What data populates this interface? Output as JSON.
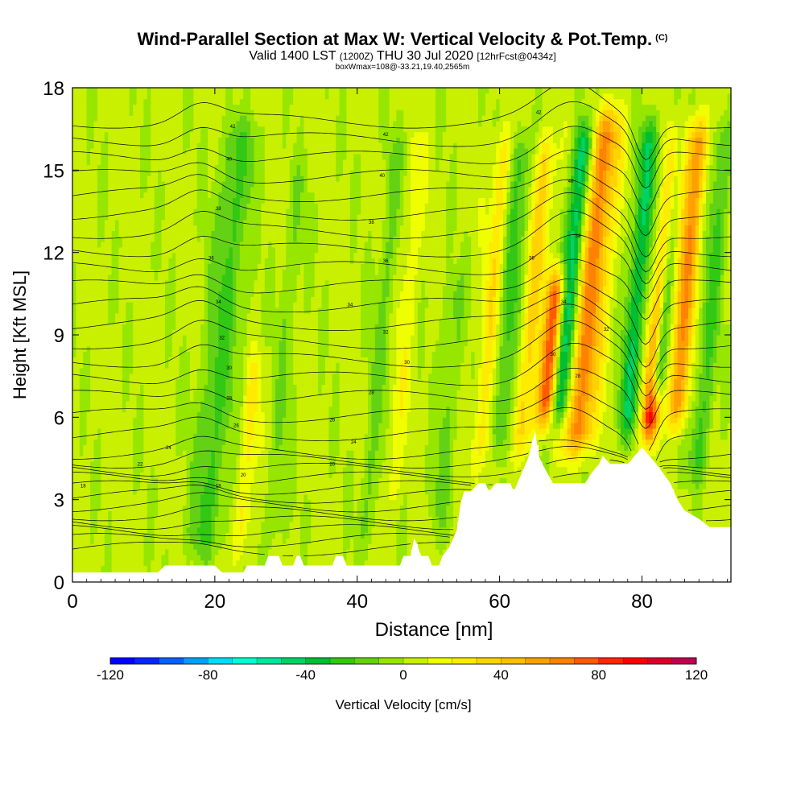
{
  "header": {
    "title": "Wind-Parallel Section at Max W: Vertical Velocity & Pot.Temp.",
    "corner_mark": "(C)",
    "valid_prefix": "Valid 1400 LST",
    "valid_utc": "(1200Z)",
    "valid_date": "THU 30 Jul 2020",
    "forecast": "[12hrFcst@0434z]",
    "box_info": "boxWmax=108@-33.21,19.40,2565m"
  },
  "chart_data": {
    "type": "contour-section",
    "title": "Wind-Parallel Section at Max W: Vertical Velocity & Pot.Temp.",
    "xlabel": "Distance [nm]",
    "ylabel": "Height [Kft MSL]",
    "xlim": [
      0,
      92.5
    ],
    "ylim": [
      0,
      18
    ],
    "xticks": [
      0,
      20,
      40,
      60,
      80
    ],
    "yticks": [
      0,
      3,
      6,
      9,
      12,
      15,
      18
    ],
    "colorbar": {
      "label": "Vertical Velocity [cm/s]",
      "range": [
        -120,
        120
      ],
      "step": 10,
      "tick_values": [
        -120,
        -80,
        -40,
        0,
        40,
        80,
        120
      ],
      "tick_labels": [
        "-120",
        "-80",
        "-40",
        "0",
        "40",
        "80",
        "120"
      ],
      "colors": [
        "#0000ff",
        "#0028ff",
        "#0064ff",
        "#00a0ff",
        "#00dcff",
        "#00ffd2",
        "#00e6a0",
        "#00d264",
        "#00be32",
        "#32c814",
        "#64d214",
        "#96e600",
        "#c8f000",
        "#f0ff00",
        "#ffeb00",
        "#ffd200",
        "#ffbe00",
        "#ffa000",
        "#ff8200",
        "#ff5a00",
        "#ff2800",
        "#ff0000",
        "#dc0028",
        "#be0050"
      ]
    },
    "terrain": [
      {
        "x": 0,
        "h": 0.35
      },
      {
        "x": 12,
        "h": 0.35
      },
      {
        "x": 13,
        "h": 0.6
      },
      {
        "x": 20,
        "h": 0.6
      },
      {
        "x": 21,
        "h": 0.35
      },
      {
        "x": 24,
        "h": 0.35
      },
      {
        "x": 24.5,
        "h": 0.6
      },
      {
        "x": 27,
        "h": 0.6
      },
      {
        "x": 27.5,
        "h": 0.95
      },
      {
        "x": 29,
        "h": 0.95
      },
      {
        "x": 29.5,
        "h": 0.6
      },
      {
        "x": 31,
        "h": 0.6
      },
      {
        "x": 31.5,
        "h": 0.95
      },
      {
        "x": 32,
        "h": 0.95
      },
      {
        "x": 32.5,
        "h": 0.6
      },
      {
        "x": 36.5,
        "h": 0.6
      },
      {
        "x": 37,
        "h": 0.95
      },
      {
        "x": 38,
        "h": 0.95
      },
      {
        "x": 38.5,
        "h": 0.6
      },
      {
        "x": 46,
        "h": 0.6
      },
      {
        "x": 46.5,
        "h": 0.95
      },
      {
        "x": 47.5,
        "h": 0.95
      },
      {
        "x": 48,
        "h": 1.6
      },
      {
        "x": 48.5,
        "h": 1.3
      },
      {
        "x": 49,
        "h": 0.95
      },
      {
        "x": 50,
        "h": 0.95
      },
      {
        "x": 50.5,
        "h": 0.6
      },
      {
        "x": 51.5,
        "h": 0.6
      },
      {
        "x": 52,
        "h": 0.95
      },
      {
        "x": 53,
        "h": 1.3
      },
      {
        "x": 54,
        "h": 1.9
      },
      {
        "x": 54.5,
        "h": 2.8
      },
      {
        "x": 55,
        "h": 3.3
      },
      {
        "x": 56,
        "h": 3.3
      },
      {
        "x": 57,
        "h": 3.6
      },
      {
        "x": 58,
        "h": 3.6
      },
      {
        "x": 58.5,
        "h": 3.3
      },
      {
        "x": 59.5,
        "h": 3.6
      },
      {
        "x": 61.5,
        "h": 3.6
      },
      {
        "x": 62,
        "h": 3.3
      },
      {
        "x": 63,
        "h": 3.9
      },
      {
        "x": 64,
        "h": 4.5
      },
      {
        "x": 65,
        "h": 5.5
      },
      {
        "x": 65.5,
        "h": 4.6
      },
      {
        "x": 66,
        "h": 4.3
      },
      {
        "x": 67.5,
        "h": 3.6
      },
      {
        "x": 72,
        "h": 3.6
      },
      {
        "x": 73,
        "h": 4.0
      },
      {
        "x": 74,
        "h": 4.3
      },
      {
        "x": 74.5,
        "h": 4.6
      },
      {
        "x": 75.5,
        "h": 4.3
      },
      {
        "x": 78,
        "h": 4.3
      },
      {
        "x": 79,
        "h": 4.6
      },
      {
        "x": 80,
        "h": 4.9
      },
      {
        "x": 81,
        "h": 4.6
      },
      {
        "x": 82,
        "h": 4.3
      },
      {
        "x": 84,
        "h": 3.6
      },
      {
        "x": 85,
        "h": 3.0
      },
      {
        "x": 86,
        "h": 2.6
      },
      {
        "x": 88,
        "h": 2.3
      },
      {
        "x": 89.5,
        "h": 2.0
      },
      {
        "x": 92.5,
        "h": 2.0
      }
    ],
    "updrafts": [
      {
        "x": 18,
        "w": 2.5,
        "h0": 0.3,
        "h1": 17.5,
        "v": -25,
        "tilt": 0.35
      },
      {
        "x": 23.5,
        "w": 1.2,
        "h0": 0.5,
        "h1": 9,
        "v": 20,
        "tilt": 0.3
      },
      {
        "x": 28,
        "w": 1.5,
        "h0": 0.5,
        "h1": 16,
        "v": -12,
        "tilt": 0.25
      },
      {
        "x": 41,
        "w": 1.5,
        "h0": 0.6,
        "h1": 17,
        "v": -15,
        "tilt": 0.3
      },
      {
        "x": 44.5,
        "w": 1.2,
        "h0": 2,
        "h1": 17,
        "v": 15,
        "tilt": 0.3
      },
      {
        "x": 51,
        "w": 1.5,
        "h0": 1,
        "h1": 12,
        "v": -15,
        "tilt": 0.3
      },
      {
        "x": 57.5,
        "w": 1.5,
        "h0": 3.5,
        "h1": 17,
        "v": 25,
        "tilt": 0.25
      },
      {
        "x": 59.5,
        "w": 1.5,
        "h0": 4,
        "h1": 17,
        "v": -30,
        "tilt": 0.3
      },
      {
        "x": 63,
        "w": 1.5,
        "h0": 4,
        "h1": 17,
        "v": 30,
        "tilt": 0.3
      },
      {
        "x": 66,
        "w": 1.2,
        "h0": 5,
        "h1": 12,
        "v": 75,
        "tilt": 0.35
      },
      {
        "x": 68,
        "w": 1.3,
        "h0": 5,
        "h1": 17.5,
        "v": -60,
        "tilt": 0.35
      },
      {
        "x": 70.5,
        "w": 2.2,
        "h0": 4,
        "h1": 17.8,
        "v": 60,
        "tilt": 0.35
      },
      {
        "x": 77.5,
        "w": 1.5,
        "h0": 4.5,
        "h1": 17.5,
        "v": -40,
        "tilt": 0.3
      },
      {
        "x": 80.5,
        "w": 1.2,
        "h0": 4.5,
        "h1": 17.5,
        "v": 95,
        "tilt": 0.4
      },
      {
        "x": 81.7,
        "w": 1.0,
        "h0": 6,
        "h1": 17.5,
        "v": -95,
        "tilt": 0.35
      },
      {
        "x": 84.5,
        "w": 1.5,
        "h0": 5,
        "h1": 17.5,
        "v": 55,
        "tilt": 0.3
      },
      {
        "x": 87.5,
        "w": 1.5,
        "h0": 3,
        "h1": 17.5,
        "v": -25,
        "tilt": 0.3
      }
    ],
    "isentrope_labels": [
      {
        "x": 22.5,
        "y": 16.6,
        "text": "42"
      },
      {
        "x": 22,
        "y": 15.4,
        "text": "40"
      },
      {
        "x": 20.5,
        "y": 13.6,
        "text": "38"
      },
      {
        "x": 19.5,
        "y": 11.8,
        "text": "36"
      },
      {
        "x": 20.5,
        "y": 10.2,
        "text": "34"
      },
      {
        "x": 21,
        "y": 8.9,
        "text": "32"
      },
      {
        "x": 22,
        "y": 7.8,
        "text": "30"
      },
      {
        "x": 22,
        "y": 6.7,
        "text": "28"
      },
      {
        "x": 23,
        "y": 5.7,
        "text": "26"
      },
      {
        "x": 13.5,
        "y": 4.9,
        "text": "24"
      },
      {
        "x": 9.5,
        "y": 4.3,
        "text": "22"
      },
      {
        "x": 24,
        "y": 3.9,
        "text": "20"
      },
      {
        "x": 1.5,
        "y": 3.5,
        "text": "18"
      },
      {
        "x": 20.5,
        "y": 3.5,
        "text": "18"
      },
      {
        "x": 44,
        "y": 16.3,
        "text": "42"
      },
      {
        "x": 43.5,
        "y": 14.8,
        "text": "40"
      },
      {
        "x": 42,
        "y": 13.1,
        "text": "38"
      },
      {
        "x": 44,
        "y": 11.7,
        "text": "36"
      },
      {
        "x": 39,
        "y": 10.1,
        "text": "34"
      },
      {
        "x": 44,
        "y": 9.1,
        "text": "32"
      },
      {
        "x": 47,
        "y": 8.0,
        "text": "30"
      },
      {
        "x": 42,
        "y": 6.9,
        "text": "28"
      },
      {
        "x": 36.5,
        "y": 5.9,
        "text": "26"
      },
      {
        "x": 39.5,
        "y": 5.1,
        "text": "24"
      },
      {
        "x": 36.5,
        "y": 4.3,
        "text": "20"
      },
      {
        "x": 65.5,
        "y": 17.1,
        "text": "42"
      },
      {
        "x": 70,
        "y": 14.6,
        "text": "40"
      },
      {
        "x": 71,
        "y": 12.6,
        "text": "38"
      },
      {
        "x": 64.5,
        "y": 11.8,
        "text": "36"
      },
      {
        "x": 69,
        "y": 10.2,
        "text": "34"
      },
      {
        "x": 75,
        "y": 9.2,
        "text": "32"
      },
      {
        "x": 67.5,
        "y": 8.3,
        "text": "30"
      },
      {
        "x": 71,
        "y": 7.5,
        "text": "28"
      }
    ]
  }
}
